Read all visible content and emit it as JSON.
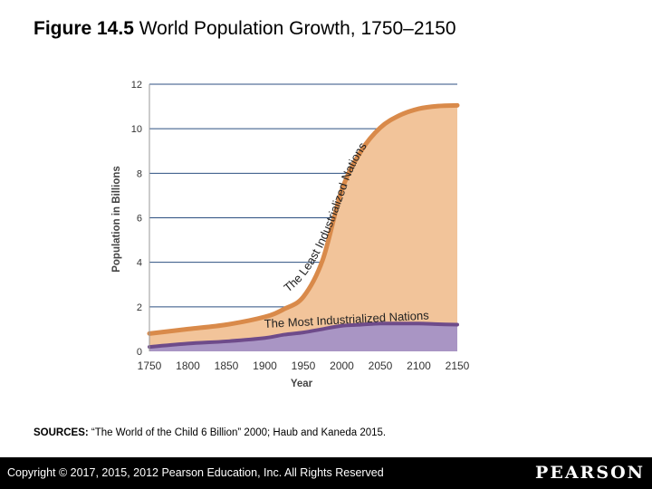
{
  "slide": {
    "figure_number": "Figure 14.5",
    "figure_title": "World Population Growth, 1750–2150"
  },
  "sources": {
    "label": "SOURCES:",
    "text": "“The World of the Child 6 Billion” 2000; Haub and Kaneda 2015."
  },
  "footer": {
    "copyright": "Copyright © 2017, 2015, 2012 Pearson Education, Inc. All Rights Reserved",
    "brand": "PEARSON"
  },
  "colors": {
    "least_fill": "#f2c49a",
    "least_line": "#d98a4a",
    "most_fill": "#a995c4",
    "most_line": "#6e4b8a",
    "grid": "#2c4f80",
    "axis": "#333333"
  },
  "chart_data": {
    "type": "area",
    "stacked": true,
    "x": [
      1750,
      1800,
      1850,
      1900,
      1925,
      1950,
      1975,
      2000,
      2025,
      2050,
      2075,
      2100,
      2125,
      2150
    ],
    "series": [
      {
        "name": "The Most Industrialized Nations",
        "values": [
          0.2,
          0.35,
          0.45,
          0.6,
          0.75,
          0.85,
          1.0,
          1.15,
          1.2,
          1.25,
          1.25,
          1.25,
          1.22,
          1.2
        ]
      },
      {
        "name": "The Least Industrialized Nations",
        "values": [
          0.6,
          0.65,
          0.75,
          0.95,
          1.15,
          1.6,
          3.1,
          6.1,
          7.8,
          8.8,
          9.35,
          9.65,
          9.8,
          9.85
        ]
      }
    ],
    "totals": [
      0.8,
      1.0,
      1.2,
      1.55,
      1.9,
      2.45,
      4.1,
      7.25,
      9.0,
      10.05,
      10.6,
      10.9,
      11.02,
      11.05
    ],
    "xticks": [
      "1750",
      "1800",
      "1850",
      "1900",
      "1950",
      "2000",
      "2050",
      "2100",
      "2150"
    ],
    "yticks": [
      "0",
      "2",
      "4",
      "6",
      "8",
      "10",
      "12"
    ],
    "xlim": [
      1750,
      2150
    ],
    "ylim": [
      0,
      12
    ],
    "xlabel": "Year",
    "ylabel": "Population in Billions",
    "grid": true
  }
}
